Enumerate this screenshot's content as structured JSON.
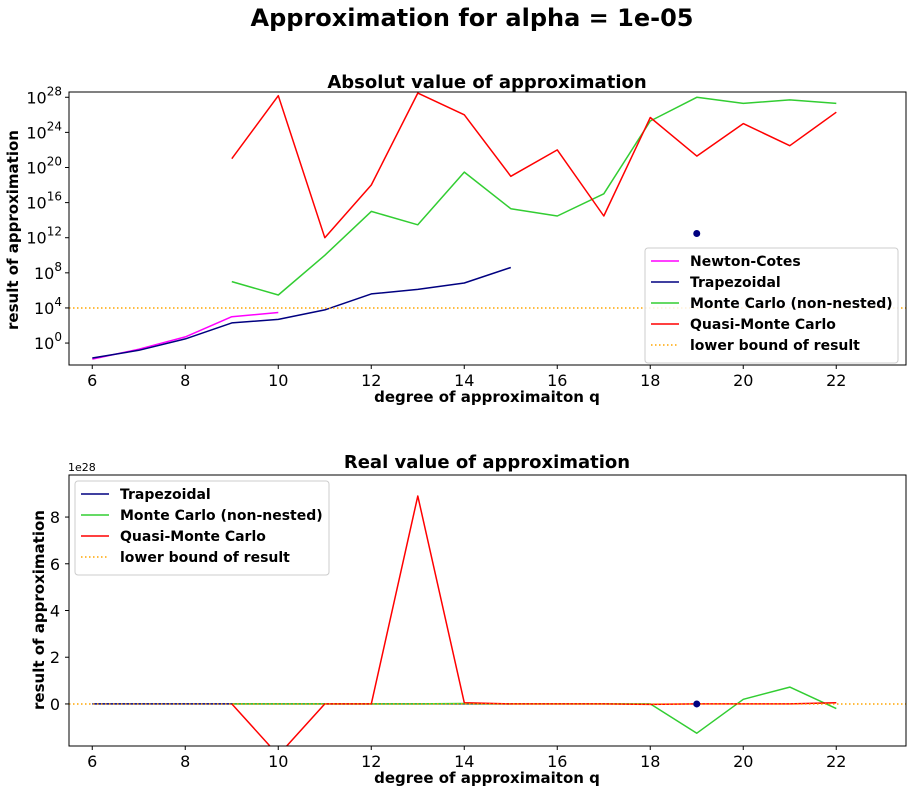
{
  "suptitle": "Approximation for alpha = 1e-05",
  "chart_data": [
    {
      "type": "line",
      "title": "Absolut value of approximation",
      "xlabel": "degree of approximaiton q",
      "ylabel": "result of approximation",
      "yscale": "log",
      "xlim": [
        5.5,
        23.5
      ],
      "ylim_log10": [
        -2.5,
        28.6
      ],
      "xticks": [
        6,
        8,
        10,
        12,
        14,
        16,
        18,
        20,
        22
      ],
      "xtick_labels": [
        "6",
        "8",
        "10",
        "12",
        "14",
        "16",
        "18",
        "20",
        "22"
      ],
      "yticks_log10": [
        0,
        4,
        8,
        12,
        16,
        20,
        24,
        28
      ],
      "ytick_bases": [
        "10",
        "10",
        "10",
        "10",
        "10",
        "10",
        "10",
        "10"
      ],
      "ytick_exponents": [
        "0",
        "4",
        "8",
        "12",
        "16",
        "20",
        "24",
        "28"
      ],
      "legend_position": "lower-right",
      "grid": false,
      "series": [
        {
          "name": "Newton-Cotes",
          "color": "#ff00ff",
          "x": [
            6,
            7,
            8,
            9,
            10
          ],
          "y": [
            0.015,
            0.2,
            5,
            1000.0,
            3000.0
          ]
        },
        {
          "name": "Trapezoidal",
          "color": "#000080",
          "x": [
            6,
            7,
            8,
            9,
            10,
            11,
            12,
            13,
            14,
            15
          ],
          "y": [
            0.02,
            0.15,
            3,
            200.0,
            500.0,
            6000.0,
            400000.0,
            1300000.0,
            7000000.0,
            400000000.0
          ]
        },
        {
          "name": "Monte Carlo (non-nested)",
          "color": "#32cd32",
          "x": [
            9,
            10,
            11,
            12,
            13,
            14,
            15,
            16,
            17,
            18,
            19,
            20,
            21,
            22
          ],
          "y": [
            10000000.0,
            300000.0,
            10000000000.0,
            1000000000000000.0,
            30000000000000.0,
            3e+19,
            2000000000000000.0,
            300000000000000.0,
            1e+17,
            2e+25,
            1e+28,
            2e+27,
            5e+27,
            2e+27
          ]
        },
        {
          "name": "Quasi-Monte Carlo",
          "color": "#ff0000",
          "x": [
            9,
            10,
            11,
            12,
            13,
            14,
            15,
            16,
            17,
            18,
            19,
            20,
            21,
            22
          ],
          "y": [
            1e+21,
            1.5e+28,
            1000000000000.0,
            1e+18,
            3e+28,
            1e+26,
            1e+19,
            1e+22,
            300000000000000.0,
            5e+25,
            2e+21,
            1e+25,
            3e+22,
            2e+26
          ]
        },
        {
          "name": "lower bound of result",
          "color": "#ffa500",
          "style": "dotted",
          "hline": 10000.0
        }
      ],
      "markers": [
        {
          "x": 19,
          "y": 3000000000000.0,
          "color": "#000080"
        }
      ]
    },
    {
      "type": "line",
      "title": "Real value of approximation",
      "xlabel": "degree of approximaiton q",
      "ylabel": "result of approximation",
      "offset_text": "1e28",
      "xlim": [
        5.5,
        23.5
      ],
      "ylim": [
        -1.8,
        9.8
      ],
      "xticks": [
        6,
        8,
        10,
        12,
        14,
        16,
        18,
        20,
        22
      ],
      "xtick_labels": [
        "6",
        "8",
        "10",
        "12",
        "14",
        "16",
        "18",
        "20",
        "22"
      ],
      "yticks": [
        0,
        2,
        4,
        6,
        8
      ],
      "ytick_labels": [
        "0",
        "2",
        "4",
        "6",
        "8"
      ],
      "legend_position": "upper-left",
      "grid": false,
      "series": [
        {
          "name": "Trapezoidal",
          "color": "#000080",
          "x": [
            6,
            7,
            8,
            9,
            10,
            11,
            12,
            13,
            14,
            15
          ],
          "y": [
            0,
            0,
            0,
            0,
            0,
            0,
            0,
            0,
            0,
            0
          ]
        },
        {
          "name": "Monte Carlo (non-nested)",
          "color": "#32cd32",
          "x": [
            9,
            10,
            11,
            12,
            13,
            14,
            15,
            16,
            17,
            18,
            19,
            20,
            21,
            22
          ],
          "y": [
            0,
            0,
            0,
            0,
            0,
            0.02,
            0,
            0,
            0,
            0,
            -1.25,
            0.2,
            0.72,
            -0.2
          ]
        },
        {
          "name": "Quasi-Monte Carlo",
          "color": "#ff0000",
          "x": [
            9,
            10,
            11,
            12,
            13,
            14,
            15,
            16,
            17,
            18,
            19,
            20,
            21,
            22
          ],
          "y": [
            0,
            -2.2,
            0,
            0,
            8.9,
            0.05,
            0,
            0,
            0,
            -0.02,
            0,
            0,
            0,
            0.05
          ]
        },
        {
          "name": "lower bound of result",
          "color": "#ffa500",
          "style": "dotted",
          "hline": 0
        }
      ],
      "markers": [
        {
          "x": 19,
          "y": 0,
          "color": "#000080"
        }
      ]
    }
  ]
}
